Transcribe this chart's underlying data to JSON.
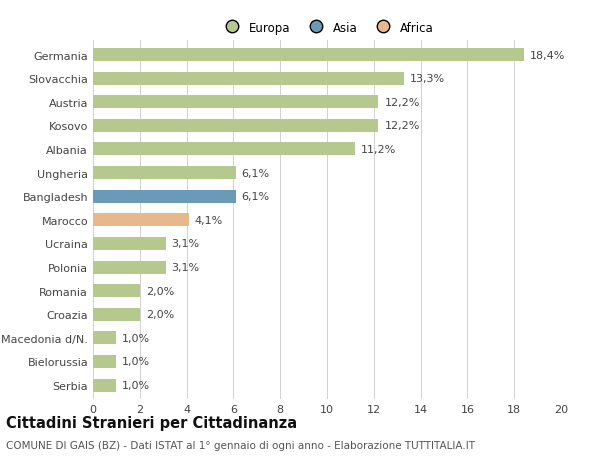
{
  "categories": [
    "Germania",
    "Slovacchia",
    "Austria",
    "Kosovo",
    "Albania",
    "Ungheria",
    "Bangladesh",
    "Marocco",
    "Ucraina",
    "Polonia",
    "Romania",
    "Croazia",
    "Macedonia d/N.",
    "Bielorussia",
    "Serbia"
  ],
  "values": [
    18.4,
    13.3,
    12.2,
    12.2,
    11.2,
    6.1,
    6.1,
    4.1,
    3.1,
    3.1,
    2.0,
    2.0,
    1.0,
    1.0,
    1.0
  ],
  "labels": [
    "18,4%",
    "13,3%",
    "12,2%",
    "12,2%",
    "11,2%",
    "6,1%",
    "6,1%",
    "4,1%",
    "3,1%",
    "3,1%",
    "2,0%",
    "2,0%",
    "1,0%",
    "1,0%",
    "1,0%"
  ],
  "continents": [
    "Europa",
    "Europa",
    "Europa",
    "Europa",
    "Europa",
    "Europa",
    "Asia",
    "Africa",
    "Europa",
    "Europa",
    "Europa",
    "Europa",
    "Europa",
    "Europa",
    "Europa"
  ],
  "colors": {
    "Europa": "#b5c98e",
    "Asia": "#6b9ab8",
    "Africa": "#e8b88a"
  },
  "xlim": [
    0,
    20
  ],
  "xticks": [
    0,
    2,
    4,
    6,
    8,
    10,
    12,
    14,
    16,
    18,
    20
  ],
  "title": "Cittadini Stranieri per Cittadinanza",
  "subtitle": "COMUNE DI GAIS (BZ) - Dati ISTAT al 1° gennaio di ogni anno - Elaborazione TUTTITALIA.IT",
  "bg_color": "#ffffff",
  "grid_color": "#d0d0d0",
  "bar_height": 0.55,
  "label_fontsize": 8,
  "tick_fontsize": 8,
  "title_fontsize": 10.5,
  "subtitle_fontsize": 7.5
}
